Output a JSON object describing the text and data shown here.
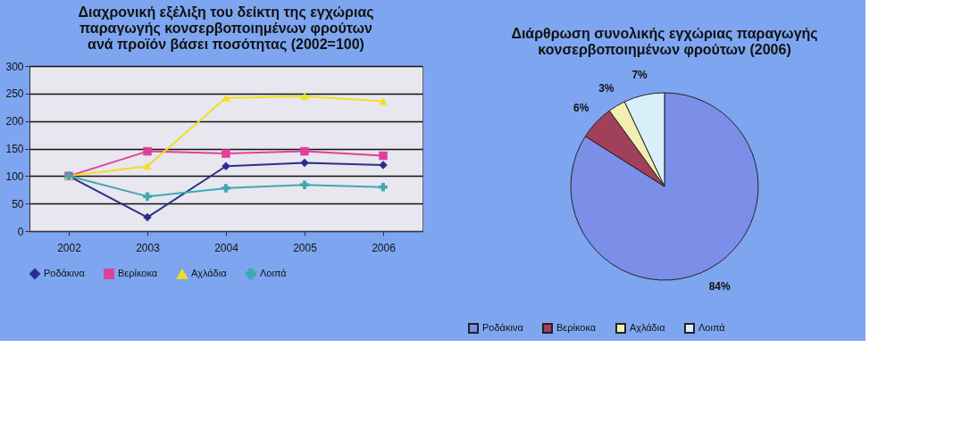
{
  "chart_data": [
    {
      "type": "line",
      "title": "Διαχρονική εξέλιξη του δείκτη της εγχώριας\nπαραγωγής κονσερβοποιημένων φρούτων\nανά προϊόν βάσει ποσότητας (2002=100)",
      "categories": [
        "2002",
        "2003",
        "2004",
        "2005",
        "2006"
      ],
      "series": [
        {
          "name": "Ροδάκινα",
          "color": "#2a2f8c",
          "marker": "diamond",
          "values": [
            100,
            25,
            118,
            124,
            120
          ]
        },
        {
          "name": "Βερίκοκα",
          "color": "#e0409a",
          "marker": "square",
          "values": [
            100,
            145,
            141,
            145,
            137
          ]
        },
        {
          "name": "Αχλάδια",
          "color": "#f0e020",
          "marker": "triangle",
          "values": [
            100,
            118,
            242,
            245,
            236
          ]
        },
        {
          "name": "Λοιπά",
          "color": "#40a8b0",
          "marker": "cross",
          "values": [
            100,
            63,
            78,
            84,
            80
          ]
        }
      ],
      "ylim": [
        0,
        300
      ],
      "yticks": [
        0,
        50,
        100,
        150,
        200,
        250,
        300
      ],
      "grid": "y",
      "legend": "bottom"
    },
    {
      "type": "pie",
      "title": "Διάρθρωση συνολικής εγχώριας παραγωγής\nκονσερβοποιημένων φρούτων (2006)",
      "categories": [
        "Ροδάκινα",
        "Βερίκοκα",
        "Αχλάδια",
        "Λοιπά"
      ],
      "values": [
        84,
        6,
        3,
        7
      ],
      "colors": [
        "#7b8ee8",
        "#a0405a",
        "#f2eeb0",
        "#d8eef8"
      ],
      "value_labels": [
        "84%",
        "6%",
        "3%",
        "7%"
      ],
      "legend": "bottom"
    }
  ]
}
